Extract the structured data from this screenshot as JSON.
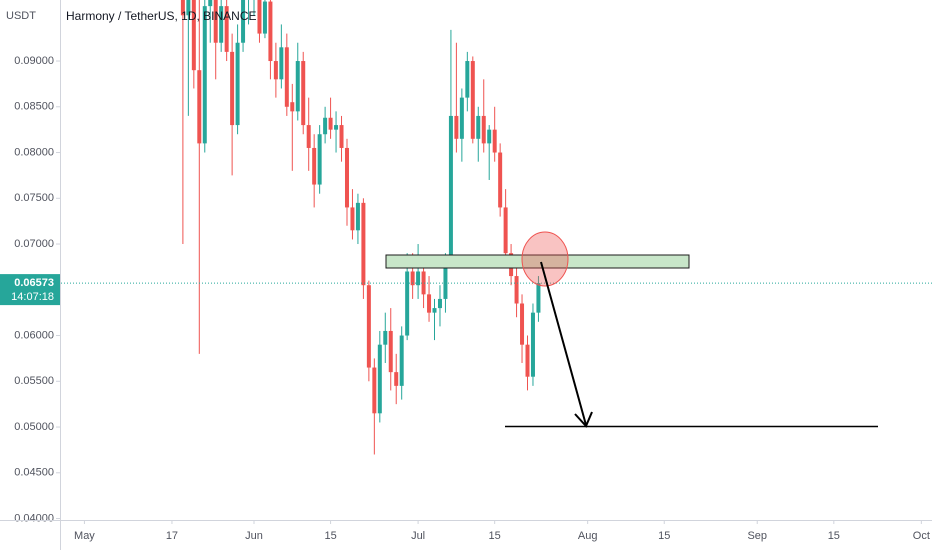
{
  "chart_data": {
    "type": "candlestick",
    "title": "Harmony / TetherUS, 1D, BINANCE",
    "currency": "USDT",
    "up_color": "#26a69a",
    "down_color": "#ef5350",
    "x": [
      "May 19",
      "May 20",
      "May 21",
      "May 22",
      "May 23",
      "May 24",
      "May 25",
      "May 26",
      "May 27",
      "May 28",
      "May 29",
      "May 30",
      "May 31",
      "Jun 1",
      "Jun 2",
      "Jun 3",
      "Jun 4",
      "Jun 5",
      "Jun 6",
      "Jun 7",
      "Jun 8",
      "Jun 9",
      "Jun 10",
      "Jun 11",
      "Jun 12",
      "Jun 13",
      "Jun 14",
      "Jun 15",
      "Jun 16",
      "Jun 17",
      "Jun 18",
      "Jun 19",
      "Jun 20",
      "Jun 21",
      "Jun 22",
      "Jun 23",
      "Jun 24",
      "Jun 25",
      "Jun 26",
      "Jun 27",
      "Jun 28",
      "Jun 29",
      "Jun 30",
      "Jul 1",
      "Jul 2",
      "Jul 3",
      "Jul 4",
      "Jul 5",
      "Jul 6",
      "Jul 7",
      "Jul 8",
      "Jul 9",
      "Jul 10",
      "Jul 11",
      "Jul 12",
      "Jul 13",
      "Jul 14",
      "Jul 15",
      "Jul 16",
      "Jul 17",
      "Jul 18",
      "Jul 19",
      "Jul 20",
      "Jul 21",
      "Jul 22",
      "Jul 23"
    ],
    "open": [
      0.099,
      0.095,
      0.0985,
      0.089,
      0.081,
      0.096,
      0.099,
      0.092,
      0.096,
      0.091,
      0.083,
      0.092,
      0.0975,
      0.0975,
      0.099,
      0.093,
      0.0965,
      0.09,
      0.088,
      0.0915,
      0.0855,
      0.0845,
      0.09,
      0.083,
      0.0805,
      0.0765,
      0.082,
      0.0838,
      0.0825,
      0.083,
      0.0805,
      0.074,
      0.0715,
      0.0745,
      0.0655,
      0.0565,
      0.0515,
      0.059,
      0.0605,
      0.056,
      0.0545,
      0.06,
      0.067,
      0.0655,
      0.067,
      0.0645,
      0.0625,
      0.063,
      0.064,
      0.0685,
      0.084,
      0.0815,
      0.086,
      0.09,
      0.0815,
      0.084,
      0.081,
      0.0825,
      0.08,
      0.074,
      0.069,
      0.0665,
      0.0635,
      0.059,
      0.0555,
      0.0625
    ],
    "high": [
      0.105,
      0.102,
      0.1,
      0.099,
      0.099,
      0.101,
      0.1,
      0.098,
      0.0975,
      0.093,
      0.094,
      0.1,
      0.1,
      0.101,
      0.1,
      0.099,
      0.098,
      0.092,
      0.094,
      0.093,
      0.0875,
      0.092,
      0.091,
      0.086,
      0.082,
      0.083,
      0.085,
      0.086,
      0.0845,
      0.084,
      0.0815,
      0.076,
      0.0755,
      0.075,
      0.066,
      0.0575,
      0.0605,
      0.0625,
      0.063,
      0.058,
      0.061,
      0.069,
      0.069,
      0.07,
      0.068,
      0.0665,
      0.064,
      0.0655,
      0.069,
      0.0934,
      0.092,
      0.087,
      0.091,
      0.0905,
      0.085,
      0.088,
      0.083,
      0.085,
      0.081,
      0.076,
      0.07,
      0.068,
      0.0645,
      0.06,
      0.0635,
      0.0665
    ],
    "low": [
      0.07,
      0.084,
      0.087,
      0.058,
      0.08,
      0.092,
      0.088,
      0.091,
      0.09,
      0.0775,
      0.082,
      0.091,
      0.094,
      0.095,
      0.092,
      0.0925,
      0.088,
      0.086,
      0.087,
      0.084,
      0.078,
      0.0835,
      0.082,
      0.078,
      0.074,
      0.0755,
      0.081,
      0.0815,
      0.08,
      0.079,
      0.072,
      0.0705,
      0.07,
      0.064,
      0.055,
      0.047,
      0.0505,
      0.057,
      0.054,
      0.0525,
      0.053,
      0.0595,
      0.064,
      0.064,
      0.063,
      0.0615,
      0.0595,
      0.061,
      0.0625,
      0.068,
      0.08,
      0.079,
      0.0845,
      0.081,
      0.079,
      0.08,
      0.077,
      0.079,
      0.073,
      0.068,
      0.0655,
      0.062,
      0.057,
      0.054,
      0.0545,
      0.0615
    ],
    "close": [
      0.095,
      0.0985,
      0.089,
      0.081,
      0.096,
      0.099,
      0.092,
      0.096,
      0.091,
      0.083,
      0.092,
      0.0975,
      0.0975,
      0.099,
      0.093,
      0.0965,
      0.09,
      0.088,
      0.0915,
      0.085,
      0.0845,
      0.09,
      0.083,
      0.0805,
      0.0765,
      0.082,
      0.0838,
      0.0825,
      0.083,
      0.0805,
      0.074,
      0.0715,
      0.0745,
      0.0655,
      0.0565,
      0.0515,
      0.059,
      0.0605,
      0.056,
      0.0545,
      0.06,
      0.067,
      0.0655,
      0.067,
      0.0645,
      0.0625,
      0.063,
      0.064,
      0.0685,
      0.084,
      0.0815,
      0.086,
      0.09,
      0.0815,
      0.084,
      0.081,
      0.0825,
      0.08,
      0.074,
      0.069,
      0.0665,
      0.0635,
      0.059,
      0.0555,
      0.0625,
      0.06573
    ],
    "ylim": [
      0.03984,
      0.09667
    ],
    "yticks": [
      {
        "value": 0.04,
        "label": "0.04000"
      },
      {
        "value": 0.045,
        "label": "0.04500"
      },
      {
        "value": 0.05,
        "label": "0.05000"
      },
      {
        "value": 0.055,
        "label": "0.05500"
      },
      {
        "value": 0.06,
        "label": "0.06000"
      },
      {
        "value": 0.065,
        "label": "0.06500"
      },
      {
        "value": 0.07,
        "label": "0.07000"
      },
      {
        "value": 0.075,
        "label": "0.07500"
      },
      {
        "value": 0.08,
        "label": "0.08000"
      },
      {
        "value": 0.085,
        "label": "0.08500"
      },
      {
        "value": 0.09,
        "label": "0.09000"
      }
    ],
    "xticks": [
      {
        "value": "May 1",
        "label": "May"
      },
      {
        "value": "May 17",
        "label": "17"
      },
      {
        "value": "Jun 1",
        "label": "Jun"
      },
      {
        "value": "Jun 15",
        "label": "15"
      },
      {
        "value": "Jul 1",
        "label": "Jul"
      },
      {
        "value": "Jul 15",
        "label": "15"
      },
      {
        "value": "Aug 1",
        "label": "Aug"
      },
      {
        "value": "Aug 15",
        "label": "15"
      },
      {
        "value": "Sep 1",
        "label": "Sep"
      },
      {
        "value": "Sep 15",
        "label": "15"
      },
      {
        "value": "Oct 1",
        "label": "Oct"
      }
    ],
    "last_price": {
      "value": 0.06573,
      "label": "0.06573"
    },
    "countdown": "14:07:18"
  }
}
